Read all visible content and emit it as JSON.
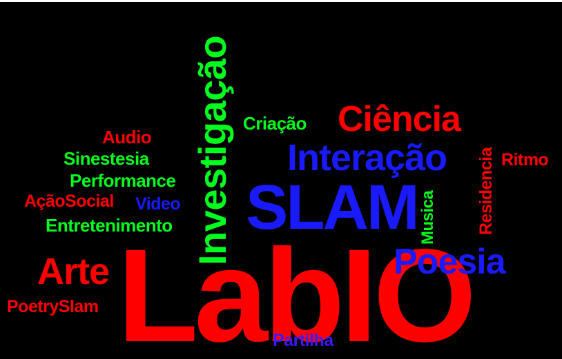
{
  "words": {
    "lablo": "LabIO",
    "slam": "SLAM",
    "investigacao": "Investigação",
    "interacao": "Interação",
    "ciencia": "Ciência",
    "poesia": "Poesia",
    "arte": "Arte",
    "poetryslam": "PoetrySlam",
    "partilha": "Partilha",
    "criacao": "Criação",
    "audio": "Audio",
    "sinestesia": "Sinestesia",
    "performance": "Performance",
    "acaosocial": "AçãoSocial",
    "video": "Video",
    "entretenimento": "Entretenimento",
    "musica": "Musica",
    "residencia": "Residencia",
    "ritmo": "Ritmo"
  },
  "colors": {
    "background": "#000000",
    "red": "#ff0000",
    "green": "#00ff1e",
    "blue": "#1a1aff",
    "indigo": "#3a1aff"
  }
}
